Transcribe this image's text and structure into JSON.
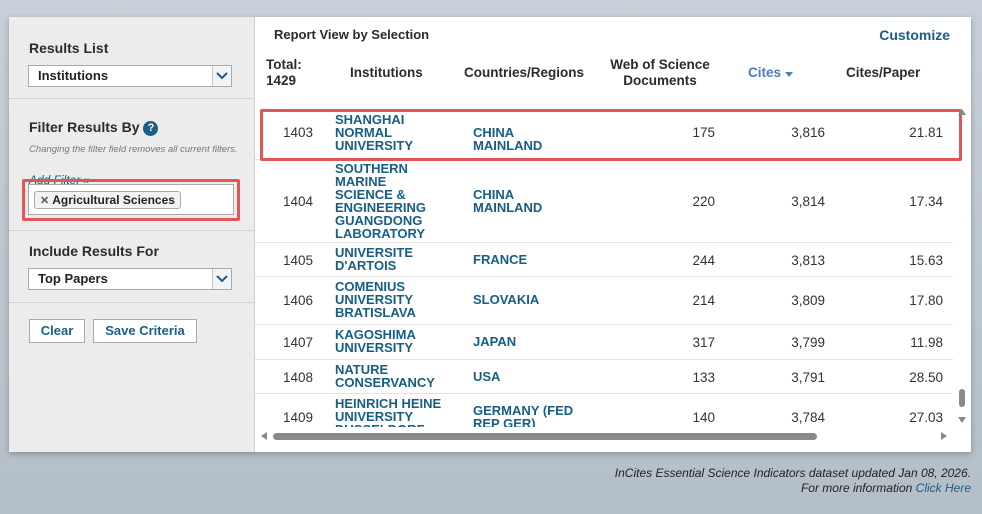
{
  "sidebar": {
    "results_list": {
      "title": "Results List",
      "selected": "Institutions"
    },
    "filter": {
      "title": "Filter Results By",
      "hint": "Changing the filter field removes all current filters.",
      "add_filter": "Add Filter »",
      "chip_label": "Agricultural Sciences"
    },
    "include": {
      "title": "Include Results For",
      "selected": "Top Papers"
    },
    "buttons": {
      "clear": "Clear",
      "save": "Save Criteria"
    }
  },
  "report": {
    "title": "Report View by Selection",
    "customize": "Customize",
    "columns": {
      "total": "Total:",
      "total_value": "1429",
      "institutions": "Institutions",
      "countries": "Countries/Regions",
      "wos_docs": "Web of Science Documents",
      "cites": "Cites",
      "cites_per_paper": "Cites/Paper"
    },
    "rows": [
      {
        "rank": "1403",
        "institution": "SHANGHAI NORMAL UNIVERSITY",
        "country": "CHINA MAINLAND",
        "docs": "175",
        "cites": "3,816",
        "cpp": "21.81"
      },
      {
        "rank": "1404",
        "institution": "SOUTHERN MARINE SCIENCE & ENGINEERING GUANGDONG LABORATORY",
        "country": "CHINA MAINLAND",
        "docs": "220",
        "cites": "3,814",
        "cpp": "17.34"
      },
      {
        "rank": "1405",
        "institution": "UNIVERSITE D'ARTOIS",
        "country": "FRANCE",
        "docs": "244",
        "cites": "3,813",
        "cpp": "15.63"
      },
      {
        "rank": "1406",
        "institution": "COMENIUS UNIVERSITY BRATISLAVA",
        "country": "SLOVAKIA",
        "docs": "214",
        "cites": "3,809",
        "cpp": "17.80"
      },
      {
        "rank": "1407",
        "institution": "KAGOSHIMA UNIVERSITY",
        "country": "JAPAN",
        "docs": "317",
        "cites": "3,799",
        "cpp": "11.98"
      },
      {
        "rank": "1408",
        "institution": "NATURE CONSERVANCY",
        "country": "USA",
        "docs": "133",
        "cites": "3,791",
        "cpp": "28.50"
      },
      {
        "rank": "1409",
        "institution": "HEINRICH HEINE UNIVERSITY DUSSELDORF",
        "country": "GERMANY (FED REP GER)",
        "docs": "140",
        "cites": "3,784",
        "cpp": "27.03"
      }
    ]
  },
  "footer": {
    "line1": "InCites Essential Science Indicators dataset updated Jan 08, 2026.",
    "line2": "For more information",
    "link": "Click Here"
  },
  "colors": {
    "link": "#1a5d86",
    "highlight": "#e05656",
    "sorted": "#4a7fb5"
  }
}
